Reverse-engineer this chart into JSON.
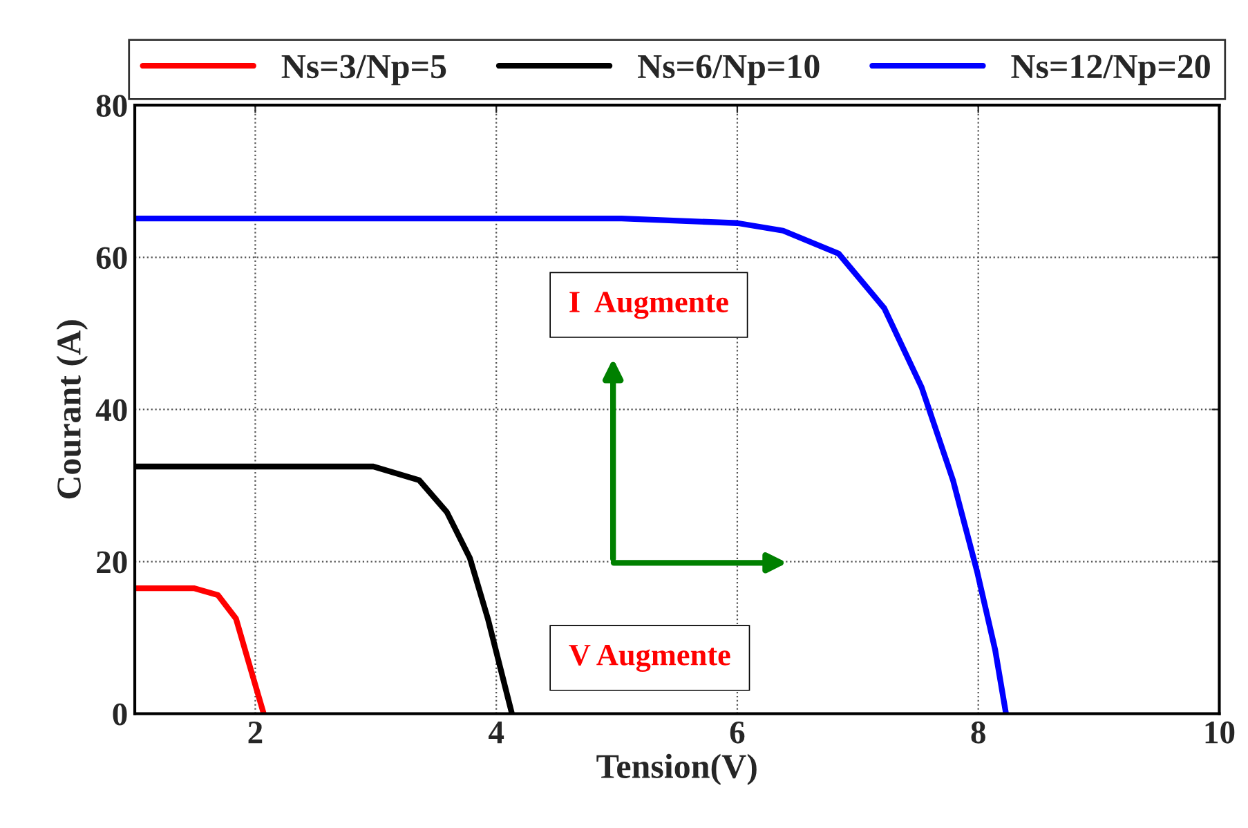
{
  "chart_data": {
    "type": "line",
    "xlabel": "Tension(V)",
    "ylabel": "Courant (A)",
    "xlim": [
      1,
      10
    ],
    "ylim": [
      0,
      80
    ],
    "xticks": [
      2,
      4,
      6,
      8,
      10
    ],
    "yticks": [
      0,
      20,
      40,
      60,
      80
    ],
    "grid": true,
    "legend": "top",
    "line_style": "solid",
    "marker": "none",
    "annotations": [
      "I  Augmente",
      "V Augmente"
    ],
    "series": [
      {
        "name": "Ns=3/Np=5",
        "color": "#ff0000",
        "x": [
          1,
          1.49,
          1.69,
          1.84,
          1.95,
          2.07
        ],
        "values": [
          16.5,
          16.5,
          15.6,
          12.5,
          6.5,
          0
        ]
      },
      {
        "name": "Ns=6/Np=10",
        "color": "#000000",
        "x": [
          1,
          2.98,
          3.36,
          3.59,
          3.78,
          3.93,
          4.13
        ],
        "values": [
          32.5,
          32.5,
          30.7,
          26.5,
          20.5,
          12.5,
          0
        ]
      },
      {
        "name": "Ns=12/Np=20",
        "color": "#0000ff",
        "x": [
          1,
          5.04,
          6.0,
          6.38,
          6.84,
          7.22,
          7.53,
          7.79,
          7.99,
          8.14,
          8.23
        ],
        "values": [
          65.1,
          65.1,
          64.5,
          63.5,
          60.5,
          53.3,
          42.9,
          30.7,
          18.7,
          8.4,
          0
        ]
      }
    ]
  }
}
